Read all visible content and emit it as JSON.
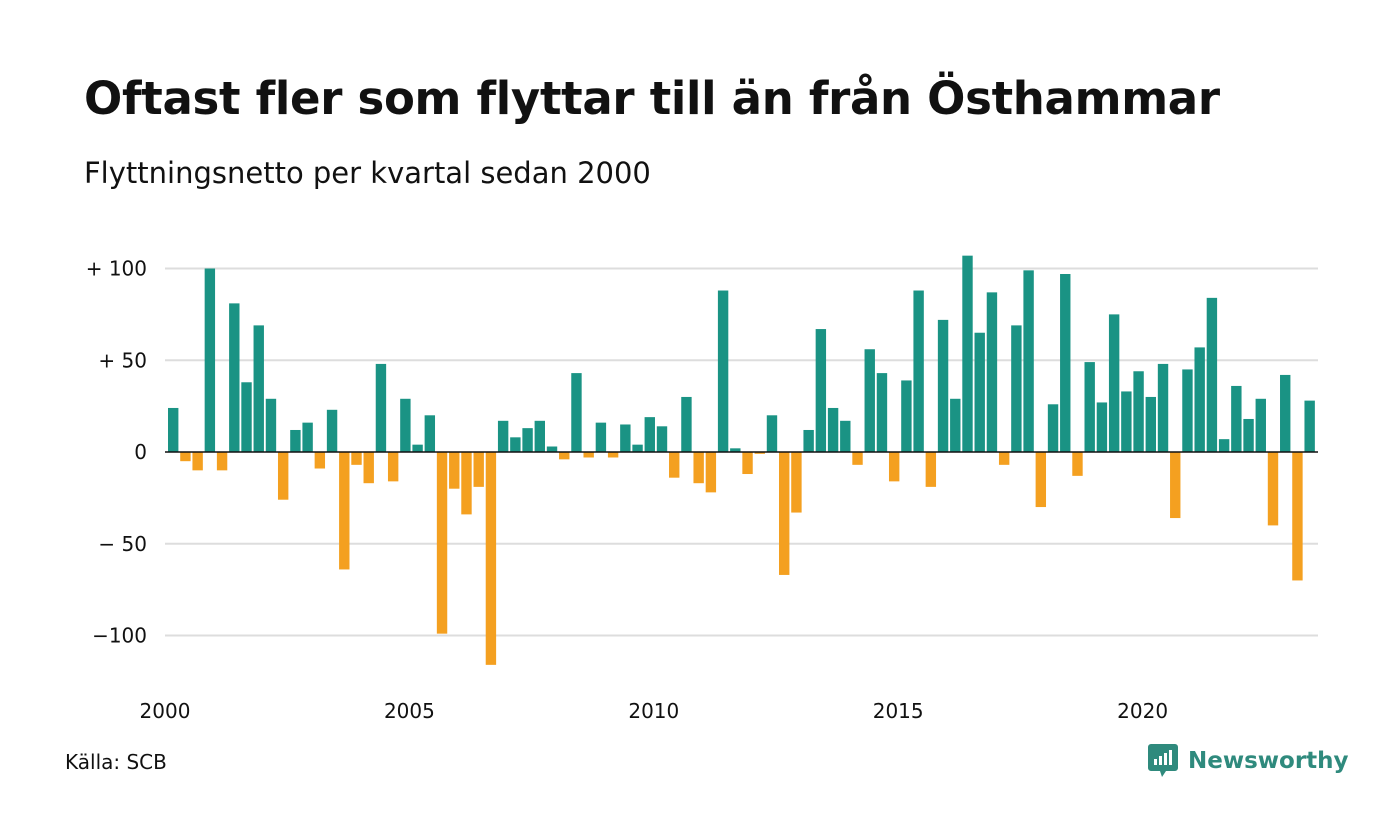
{
  "title": "Oftast fler som flyttar till än från Östhammar",
  "subtitle": "Flyttningsnetto per kvartal sedan 2000",
  "source": "Källa: SCB",
  "brand": {
    "name": "Newsworthy",
    "icon": "newsworthy-logo-icon"
  },
  "colors": {
    "positive": "#1a9384",
    "negative": "#f4a020",
    "grid": "#dddddd",
    "zero_line": "#111111"
  },
  "chart_data": {
    "type": "bar",
    "title": "Oftast fler som flyttar till än från Östhammar",
    "subtitle": "Flyttningsnetto per kvartal sedan 2000",
    "xlabel": "",
    "ylabel": "",
    "x_start": "2000 Q1",
    "x_tick_labels": [
      "2000",
      "2005",
      "2010",
      "2015",
      "2020"
    ],
    "y_ticks": [
      100,
      50,
      0,
      -50,
      -100
    ],
    "y_tick_labels": [
      "+ 100",
      "+  50",
      "0",
      "− 50",
      "−100"
    ],
    "ylim": [
      -115,
      107
    ],
    "grid": true,
    "legend": "none",
    "values": [
      24,
      -5,
      -10,
      100,
      -10,
      81,
      38,
      69,
      29,
      -26,
      12,
      16,
      -9,
      23,
      -64,
      -7,
      -17,
      48,
      -16,
      29,
      4,
      20,
      -99,
      -20,
      -34,
      -19,
      -116,
      17,
      8,
      13,
      17,
      3,
      -4,
      43,
      -3,
      16,
      -3,
      15,
      4,
      19,
      14,
      -14,
      30,
      -17,
      -22,
      88,
      2,
      -12,
      -1,
      20,
      -67,
      -33,
      12,
      67,
      24,
      17,
      -7,
      56,
      43,
      -16,
      39,
      88,
      -19,
      72,
      29,
      107,
      65,
      87,
      -7,
      69,
      99,
      -30,
      26,
      97,
      -13,
      49,
      27,
      75,
      33,
      44,
      30,
      48,
      -36,
      45,
      57,
      84,
      7,
      36,
      18,
      29,
      -40,
      42,
      -70,
      28
    ]
  }
}
